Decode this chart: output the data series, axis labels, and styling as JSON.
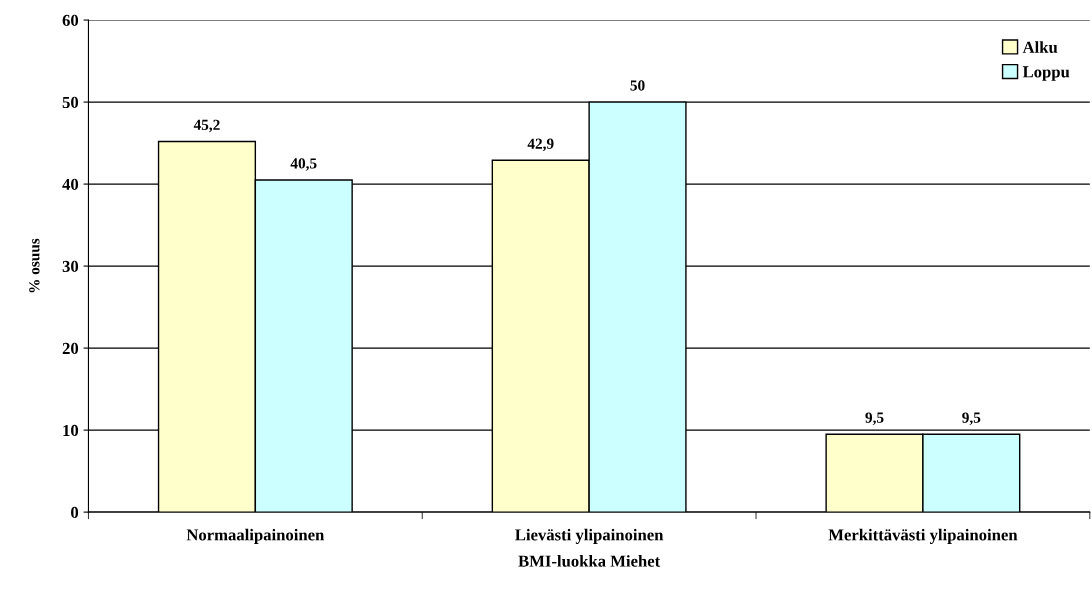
{
  "chart_data": {
    "type": "bar",
    "xlabel": "BMI-luokka Miehet",
    "ylabel": "% osuus",
    "categories": [
      "Normaalipainoinen",
      "Lievästi ylipainoinen",
      "Merkittävästi ylipainoinen"
    ],
    "series": [
      {
        "name": "Alku",
        "color": "#ffffcc",
        "values": [
          45.2,
          42.9,
          9.5
        ],
        "value_labels": [
          "45,2",
          "42,9",
          "9,5"
        ]
      },
      {
        "name": "Loppu",
        "color": "#ccffff",
        "values": [
          40.5,
          50,
          9.5
        ],
        "value_labels": [
          "40,5",
          "50",
          "9,5"
        ]
      }
    ],
    "ylim": [
      0,
      60
    ],
    "yticks": [
      0,
      10,
      20,
      30,
      40,
      50,
      60
    ],
    "grid": "y",
    "legend": "top right"
  }
}
